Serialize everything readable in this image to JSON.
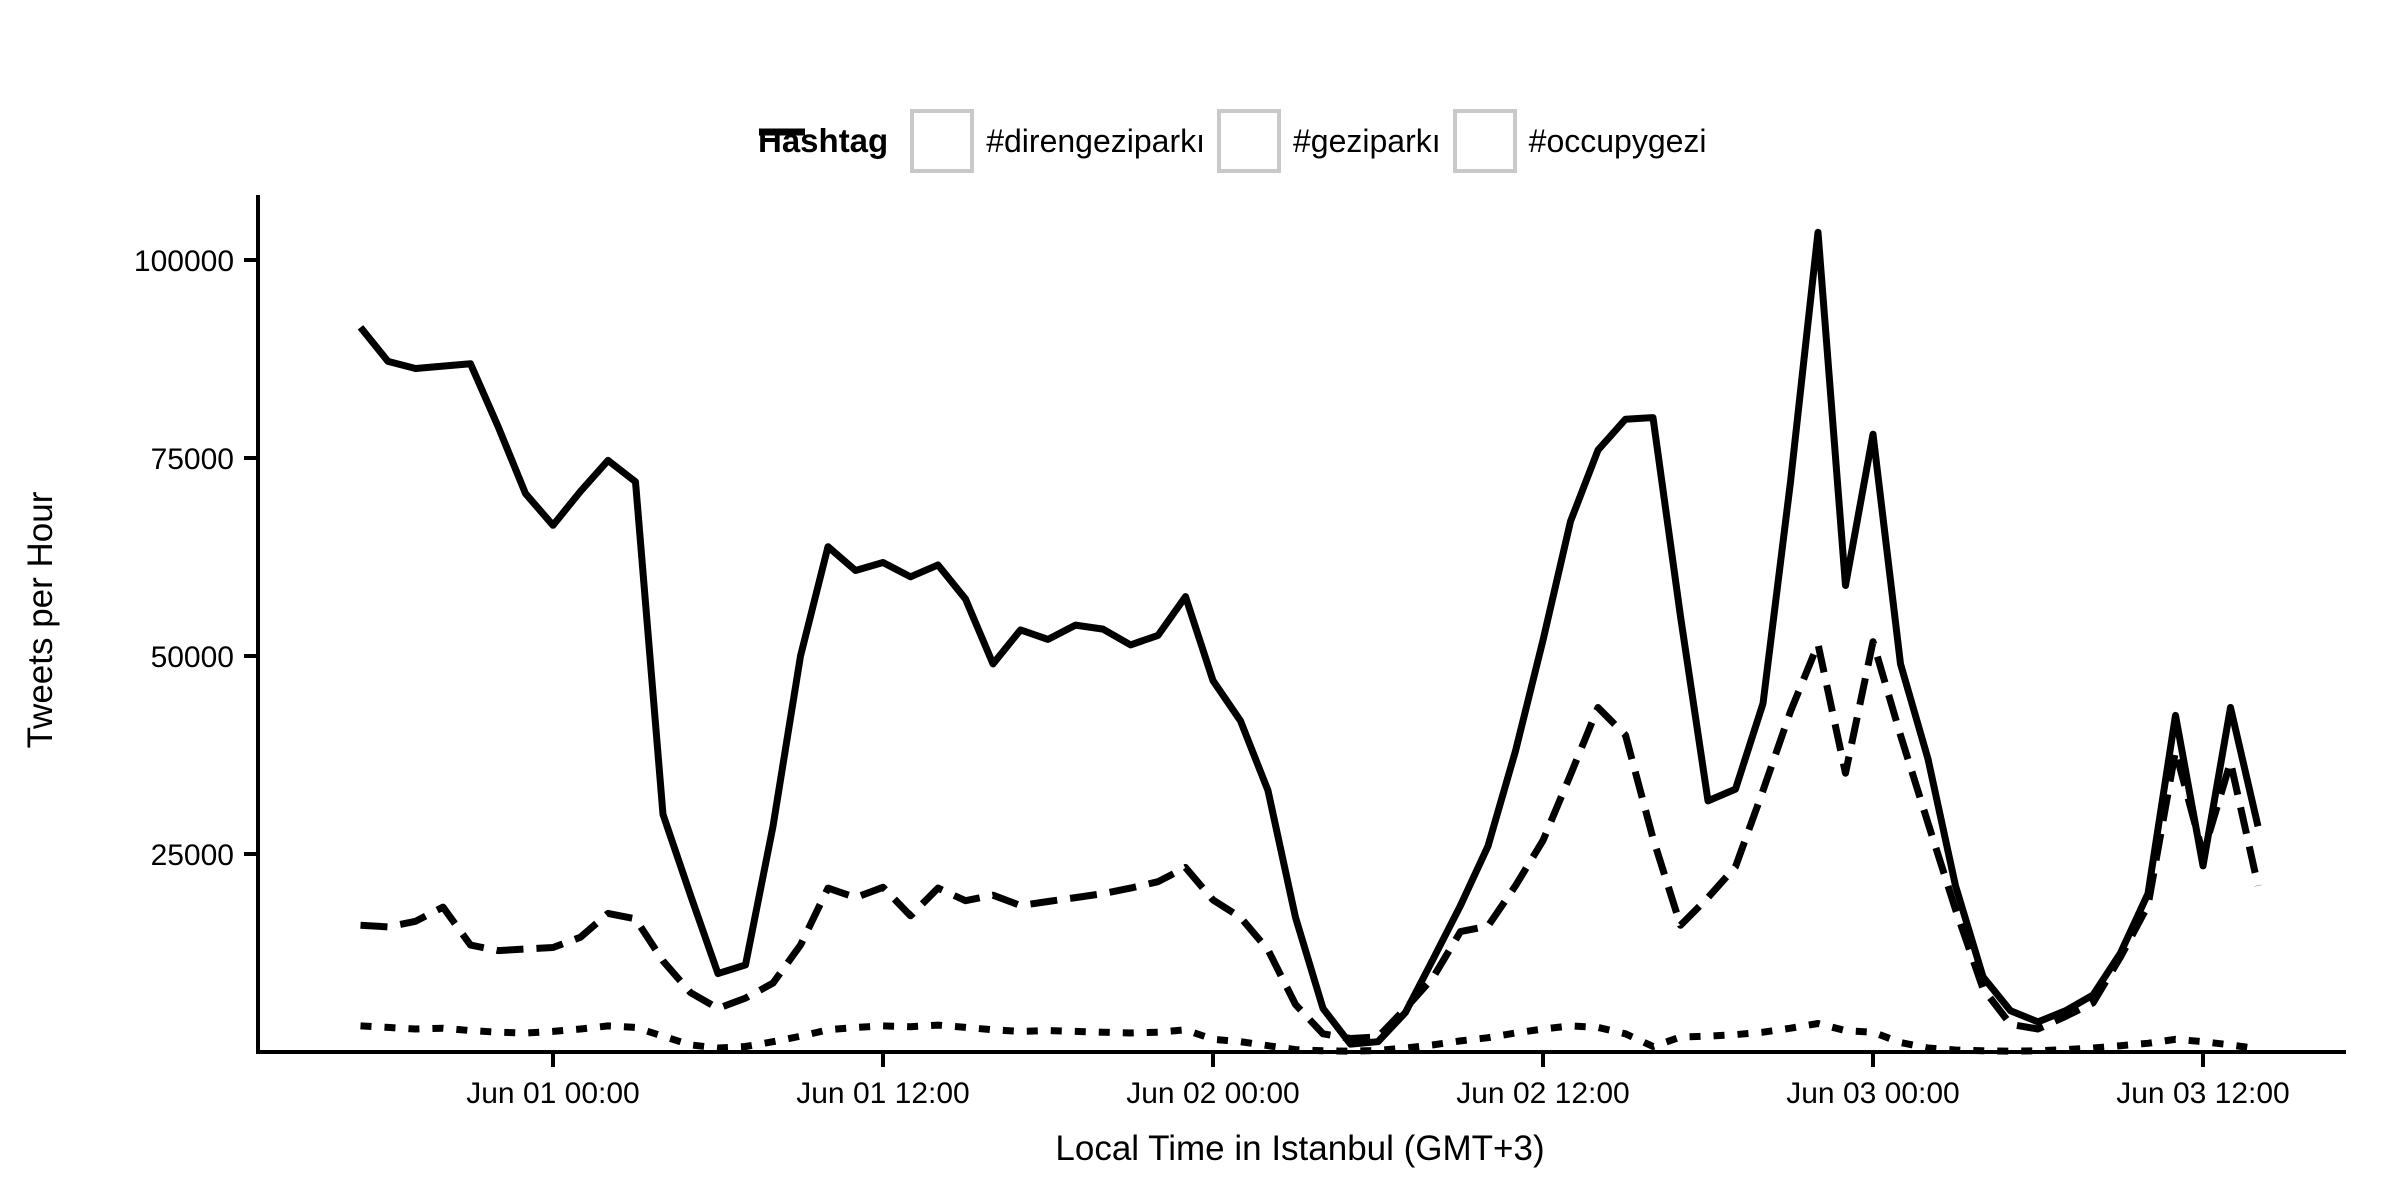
{
  "colors": {
    "line": "#000000",
    "text": "#000000",
    "background": "#ffffff",
    "legend_key_border": "#c9c9c9"
  },
  "legend": {
    "title": "Hashtag",
    "items": [
      {
        "label": "#direngeziparkı",
        "style": "solid"
      },
      {
        "label": "#geziparkı",
        "style": "dotted"
      },
      {
        "label": "#occupygezi",
        "style": "longdash"
      }
    ]
  },
  "chart_data": {
    "type": "line",
    "title": "",
    "xlabel": "Local Time in Istanbul (GMT+3)",
    "ylabel": "Tweets per Hour",
    "legend_title": "Hashtag",
    "x_start": "May 31 17:00",
    "x_step_hours": 1,
    "grid": "off",
    "legend_position": "top",
    "ylim": [
      0,
      108000
    ],
    "y_ticks": [
      25000,
      50000,
      75000,
      100000
    ],
    "y_tick_labels": [
      "25000",
      "50000",
      "75000",
      "100000"
    ],
    "x_ticks": [
      {
        "index": 7,
        "label": "Jun 01 00:00"
      },
      {
        "index": 19,
        "label": "Jun 01 12:00"
      },
      {
        "index": 31,
        "label": "Jun 02 00:00"
      },
      {
        "index": 43,
        "label": "Jun 02 12:00"
      },
      {
        "index": 55,
        "label": "Jun 03 00:00"
      },
      {
        "index": 67,
        "label": "Jun 03 12:00"
      }
    ],
    "series": [
      {
        "name": "#direngeziparkı",
        "style": "solid",
        "values": [
          91500,
          87200,
          86300,
          86600,
          86900,
          79000,
          70500,
          66500,
          70800,
          74700,
          72000,
          30000,
          19800,
          9900,
          11000,
          28500,
          50000,
          63800,
          60800,
          61800,
          60000,
          61500,
          57200,
          49000,
          53300,
          52100,
          53900,
          53400,
          51400,
          52600,
          57500,
          46900,
          41800,
          33000,
          17000,
          5500,
          1000,
          1300,
          5000,
          11700,
          18500,
          26000,
          38000,
          52000,
          67000,
          76000,
          79900,
          80100,
          55000,
          31700,
          33200,
          44000,
          72000,
          103500,
          58900,
          78000,
          49000,
          37000,
          21000,
          9500,
          5200,
          3800,
          5200,
          7200,
          12500,
          20000,
          42500,
          23500,
          43500,
          28500
        ]
      },
      {
        "name": "#geziparkı",
        "style": "dotted",
        "values": [
          3300,
          3100,
          2900,
          3000,
          2700,
          2500,
          2400,
          2600,
          2900,
          3300,
          3100,
          2000,
          900,
          500,
          700,
          1300,
          2000,
          2800,
          3100,
          3300,
          3200,
          3400,
          3100,
          2800,
          2600,
          2700,
          2600,
          2500,
          2400,
          2500,
          2800,
          1600,
          1300,
          800,
          300,
          150,
          100,
          200,
          500,
          900,
          1400,
          1800,
          2400,
          2900,
          3300,
          3100,
          2300,
          700,
          1900,
          2000,
          2200,
          2500,
          3000,
          3600,
          2700,
          2500,
          1200,
          500,
          250,
          150,
          100,
          150,
          300,
          500,
          800,
          1100,
          1600,
          1300,
          900,
          400
        ]
      },
      {
        "name": "#occupygezi",
        "style": "longdash",
        "values": [
          16000,
          15800,
          16500,
          18300,
          13500,
          12800,
          13000,
          13200,
          14500,
          17500,
          16800,
          11500,
          7500,
          5500,
          6800,
          8700,
          13500,
          20700,
          19500,
          20800,
          17200,
          20700,
          19100,
          19800,
          18500,
          19000,
          19500,
          20000,
          20700,
          21500,
          23300,
          19200,
          17000,
          12900,
          6000,
          2300,
          1700,
          1900,
          5500,
          9400,
          15200,
          15900,
          21000,
          26700,
          35000,
          43500,
          40000,
          27000,
          16000,
          19500,
          23400,
          33000,
          43000,
          51500,
          35200,
          51800,
          40000,
          28900,
          18000,
          8000,
          3500,
          2900,
          4500,
          6200,
          12000,
          18500,
          38000,
          25000,
          36600,
          21000
        ]
      }
    ]
  }
}
